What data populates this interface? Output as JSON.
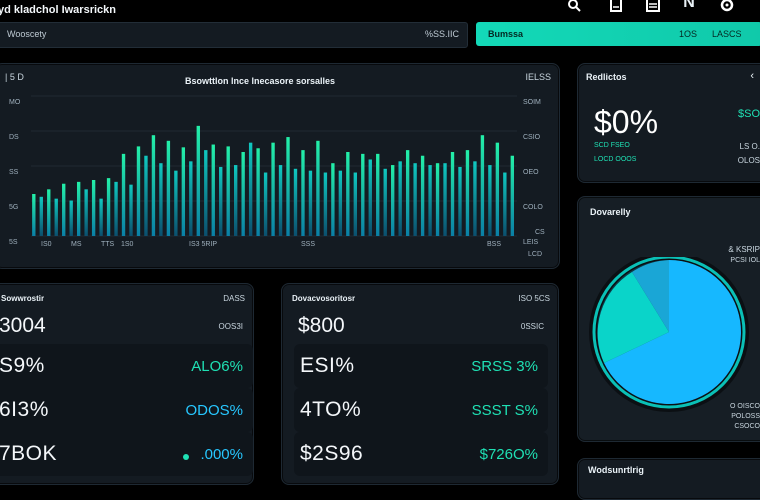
{
  "header": {
    "app_title": "yd kladchol Iwarsrickn",
    "search_value": "Wooscety",
    "search_suffix": "%SS.IIC",
    "accent_button_label": "Bumssa",
    "accent_button_value1": "1OS",
    "accent_button_value2": "LASCS"
  },
  "icons": [
    "search-icon",
    "document-icon",
    "list-icon",
    "bold-n-icon",
    "settings-icon"
  ],
  "chart_panel": {
    "top_left": "| 5 D",
    "top_right": "IELSS",
    "title": "Bsowttlon lnce lnecasore sorsalles",
    "left_ticks": [
      "MO",
      "DS",
      "SS",
      "5G",
      "5S"
    ],
    "right_ticks": [
      "SOIM",
      "CSIO",
      "OEO",
      "COLO",
      "LEIS"
    ],
    "x_ticks": [
      "IS0",
      "MS",
      "TTS",
      "1S0",
      "IS3 5RIP",
      "SSS",
      "BSS"
    ],
    "legend_note": "CS",
    "bottom_right": "LCD"
  },
  "chart_data": {
    "type": "bar",
    "title": "Bsowttlon lnce lnecasore sorsalles",
    "series": [
      {
        "values": [
          45,
          48,
          50,
          52,
          56,
          55,
          58,
          70,
          60,
          66,
          62,
          72,
          88,
          90,
          96,
          120,
          108,
          96,
          102,
          98,
          95,
          86,
          118,
          102,
          98,
          110,
          96,
          108,
          90,
          118,
          94,
          88,
          100,
          104,
          106,
          98,
          92,
          94,
          102,
          88,
          78,
          92,
          90,
          84,
          88,
          100,
          88,
          90,
          76,
          104,
          92,
          98,
          86,
          94,
          78,
          98,
          90,
          96,
          92,
          104,
          108,
          94,
          100,
          84,
          86
        ]
      },
      {
        "values": [
          38,
          42,
          36,
          40,
          44,
          38,
          46,
          50,
          52,
          40,
          48,
          58,
          62,
          55,
          70,
          86,
          72,
          78,
          66,
          70,
          60,
          80,
          96,
          92,
          70,
          74,
          80,
          76,
          72,
          100,
          70,
          68,
          74,
          76,
          80,
          72,
          66,
          70,
          76,
          68,
          64,
          70,
          72,
          68,
          76,
          82,
          78,
          72,
          66,
          80,
          74,
          78,
          70,
          76,
          64,
          78,
          72,
          74,
          70,
          80,
          84,
          76,
          80,
          68,
          70
        ]
      }
    ],
    "ylim": [
      0,
      150
    ]
  },
  "panel_left": {
    "title": "Sowwrostir",
    "title_right": "DASS",
    "big_value": "3004",
    "big_right": "OOS3I",
    "rows": [
      {
        "left": "S9%",
        "right": "ALO6%"
      },
      {
        "left": "6I3%",
        "right": "ODOS%"
      },
      {
        "left": "7BOK",
        "right": ".000%"
      }
    ]
  },
  "panel_mid": {
    "title": "Dovacvosoritosr",
    "title_right": "ISO 5CS",
    "big_value": "$800",
    "big_right": "0SSIC",
    "rows": [
      {
        "left": "ESI%",
        "right": "SRSS 3%"
      },
      {
        "left": "4TO%",
        "right": "SSST S%"
      },
      {
        "left": "$2S96",
        "right": "$726O%"
      }
    ]
  },
  "panel_kpi": {
    "title": "Redlictos",
    "value": "$0%",
    "right_top": "$SO",
    "sub_label": "SCD FSEO",
    "sub_label2": "LOCD OOOS",
    "right_bottom": "LS O.",
    "right_bottom2": "OLOS"
  },
  "panel_pie": {
    "title": "Dovarelly",
    "label1": "& KSRIP",
    "label2": "PCSI IOL",
    "label3": "O OISCO",
    "label4": "POLOSS",
    "label5": "CSOCO",
    "colors": {
      "main": "#16b8ff",
      "secondary": "#0ad4c9",
      "ring": "#111820",
      "accent": "#1fe0b4"
    }
  },
  "panel_bottom_right": {
    "title": "Wodsunrtlrig"
  }
}
